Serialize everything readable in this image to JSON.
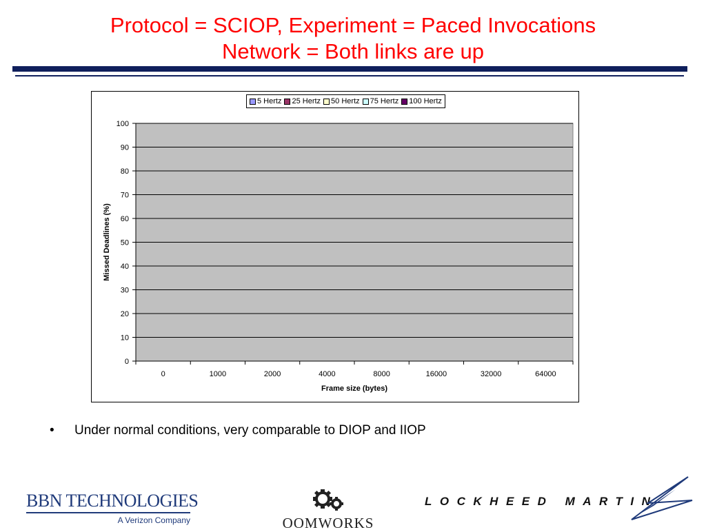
{
  "header": {
    "title_line1": "Protocol = SCIOP, Experiment = Paced Invocations",
    "title_line2": "Network = Both links are up",
    "title_color": "#ff0000",
    "rule_color": "#0f1f5c"
  },
  "chart_data": {
    "type": "bar",
    "categories": [
      "0",
      "1000",
      "2000",
      "4000",
      "8000",
      "16000",
      "32000",
      "64000"
    ],
    "series": [
      {
        "name": "5 Hertz",
        "color": "#9999ff",
        "values": [
          0,
          0,
          0,
          0,
          0,
          0,
          0,
          0
        ]
      },
      {
        "name": "25 Hertz",
        "color": "#993366",
        "values": [
          0,
          0,
          0,
          0,
          0,
          0,
          0,
          0
        ]
      },
      {
        "name": "50 Hertz",
        "color": "#ffffcc",
        "values": [
          0,
          0,
          0,
          0,
          0,
          0,
          0,
          0
        ]
      },
      {
        "name": "75 Hertz",
        "color": "#ccffff",
        "values": [
          0,
          0,
          0,
          0,
          0,
          0,
          0,
          0
        ]
      },
      {
        "name": "100 Hertz",
        "color": "#660066",
        "values": [
          0,
          0,
          0,
          0,
          0,
          0,
          0,
          0
        ]
      }
    ],
    "xlabel": "Frame size (bytes)",
    "ylabel": "Missed Deadlines (%)",
    "ylim": [
      0,
      100
    ],
    "yticks": [
      0,
      10,
      20,
      30,
      40,
      50,
      60,
      70,
      80,
      90,
      100
    ],
    "grid": true,
    "legend_position": "top-center",
    "plot_background": "#c0c0c0"
  },
  "bullets": [
    {
      "marker": "•",
      "text": "Under normal conditions, very comparable to DIOP and IIOP"
    }
  ],
  "logos": {
    "bbn_main": "BBN TECHNOLOGIES",
    "bbn_sub": "A Verizon Company",
    "oomworks": "OOMWORKS",
    "lockheed": "LOCKHEED MARTIN"
  }
}
